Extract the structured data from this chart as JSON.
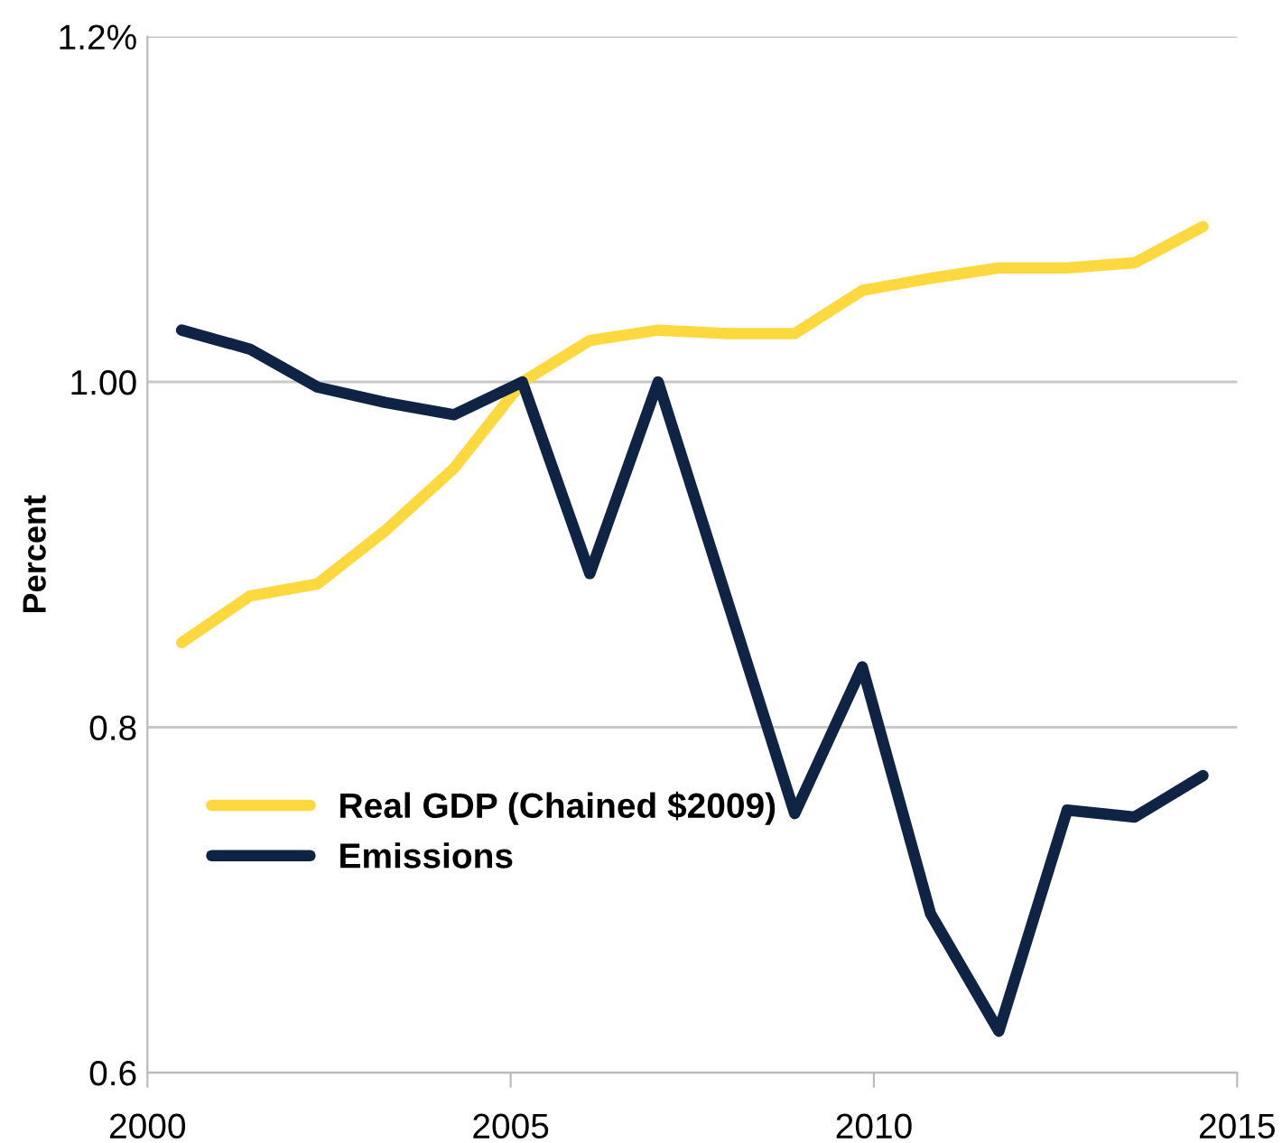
{
  "chart_data": {
    "type": "line",
    "ylabel": "Percent",
    "x": [
      2000.47,
      2001.41,
      2002.34,
      2003.28,
      2004.22,
      2005.16,
      2006.09,
      2007.03,
      2007.97,
      2008.91,
      2009.84,
      2010.78,
      2011.72,
      2012.66,
      2013.59,
      2014.53
    ],
    "series": [
      {
        "name": "Real GDP (Chained $2009)",
        "color": "#fdd93f",
        "values": [
          0.849,
          0.876,
          0.883,
          0.914,
          0.95,
          1.0,
          1.024,
          1.03,
          1.028,
          1.028,
          1.053,
          1.06,
          1.066,
          1.066,
          1.069,
          1.09
        ]
      },
      {
        "name": "Emissions",
        "color": "#0f2345",
        "values": [
          1.03,
          1.019,
          0.997,
          0.988,
          0.981,
          1.0,
          0.889,
          1.0,
          0.875,
          0.75,
          0.835,
          0.692,
          0.624,
          0.752,
          0.748,
          0.772
        ]
      }
    ],
    "xlim": [
      2000,
      2015
    ],
    "xticks": [
      2000,
      2005,
      2010,
      2015
    ],
    "ylim": [
      0.6,
      1.2
    ],
    "yticks": [
      0.6,
      0.8,
      {
        "value": 1.0,
        "label": "1.00"
      },
      {
        "value": 1.2,
        "label": "1.2%"
      }
    ],
    "grid": "y",
    "legend": "bottom left",
    "marker": "none",
    "line_style": "solid"
  }
}
